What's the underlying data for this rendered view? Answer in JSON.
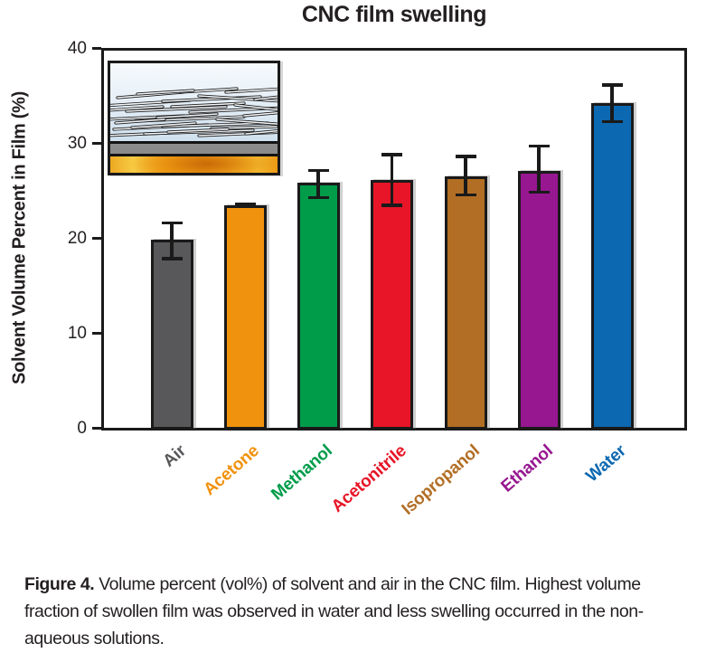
{
  "title": "CNC film swelling",
  "y_axis_label": "Solvent Volume Percent in Film (%)",
  "chart_data": {
    "type": "bar",
    "title": "CNC film swelling",
    "xlabel": "",
    "ylabel": "Solvent Volume Percent in Film (%)",
    "ylim": [
      0,
      40
    ],
    "yticks": [
      0,
      10,
      20,
      30,
      40
    ],
    "grid": false,
    "legend": "none",
    "categories": [
      "Air",
      "Acetone",
      "Methanol",
      "Acetonitrile",
      "Isopropanol",
      "Ethanol",
      "Water"
    ],
    "values": [
      19.9,
      23.5,
      25.9,
      26.1,
      26.5,
      27.1,
      34.2
    ],
    "error_up": [
      1.9,
      0.3,
      1.4,
      2.9,
      2.3,
      2.8,
      2.1
    ],
    "error_down": [
      2.2,
      0.3,
      1.8,
      2.8,
      2.1,
      2.4,
      2.1
    ],
    "bar_colors": [
      "#58585a",
      "#f1920e",
      "#009c4a",
      "#e71527",
      "#b26e24",
      "#971790",
      "#0c68b0"
    ],
    "outline_color": "#1a1a1a"
  },
  "inset": {
    "icon": "cnc-film-schematic"
  },
  "caption": {
    "prefix": "Figure 4.",
    "line1": "Volume percent (vol%) of solvent and air in the CNC film. Highest volume",
    "line2": "fraction of swollen film was observed in water and less swelling occurred in the non-",
    "line3": "aqueous solutions."
  }
}
